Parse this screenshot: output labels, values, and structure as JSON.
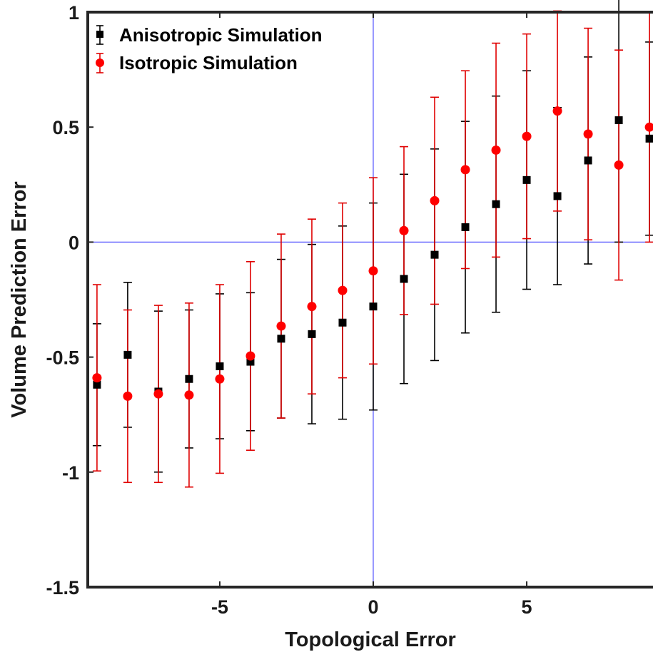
{
  "chart_data": {
    "type": "scatter",
    "title": "",
    "xlabel": "Topological Error",
    "ylabel": "Volume Prediction Error",
    "xlim": [
      -9.3,
      9.3
    ],
    "ylim": [
      -1.5,
      1
    ],
    "xticks": [
      -5,
      0,
      5
    ],
    "yticks": [
      -1.5,
      -1,
      -0.5,
      0,
      0.5,
      1
    ],
    "xtick_labels": [
      "-5",
      "0",
      "5"
    ],
    "ytick_labels": [
      "-1.5",
      "-1",
      "-0.5",
      "0",
      "0.5",
      "1"
    ],
    "reference_lines": {
      "x": 0,
      "y": 0,
      "color": "#5555ff"
    },
    "legend_position": "top-left",
    "grid": false,
    "series": [
      {
        "name": "Anisotropic Simulation",
        "marker": "square",
        "color": "#000000",
        "x": [
          -9,
          -8,
          -7,
          -6,
          -5,
          -4,
          -3,
          -2,
          -1,
          0,
          1,
          2,
          3,
          4,
          5,
          6,
          7,
          8,
          9
        ],
        "y": [
          -0.62,
          -0.49,
          -0.65,
          -0.595,
          -0.54,
          -0.52,
          -0.42,
          -0.4,
          -0.35,
          -0.28,
          -0.16,
          -0.055,
          0.065,
          0.165,
          0.27,
          0.2,
          0.355,
          0.53,
          0.45
        ],
        "error": [
          0.265,
          0.315,
          0.35,
          0.3,
          0.315,
          0.3,
          0.345,
          0.39,
          0.42,
          0.45,
          0.455,
          0.46,
          0.46,
          0.47,
          0.475,
          0.385,
          0.45,
          0.53,
          0.42
        ]
      },
      {
        "name": "Isotropic Simulation",
        "marker": "circle",
        "color": "#ff0000",
        "x": [
          -9,
          -8,
          -7,
          -6,
          -5,
          -4,
          -3,
          -2,
          -1,
          0,
          1,
          2,
          3,
          4,
          5,
          6,
          7,
          8,
          9
        ],
        "y": [
          -0.59,
          -0.67,
          -0.66,
          -0.665,
          -0.595,
          -0.495,
          -0.365,
          -0.28,
          -0.21,
          -0.125,
          0.05,
          0.18,
          0.315,
          0.4,
          0.46,
          0.57,
          0.47,
          0.335,
          0.5
        ],
        "error": [
          0.405,
          0.375,
          0.385,
          0.4,
          0.41,
          0.41,
          0.4,
          0.38,
          0.38,
          0.405,
          0.365,
          0.45,
          0.43,
          0.465,
          0.445,
          0.435,
          0.46,
          0.5,
          0.5
        ]
      }
    ]
  }
}
